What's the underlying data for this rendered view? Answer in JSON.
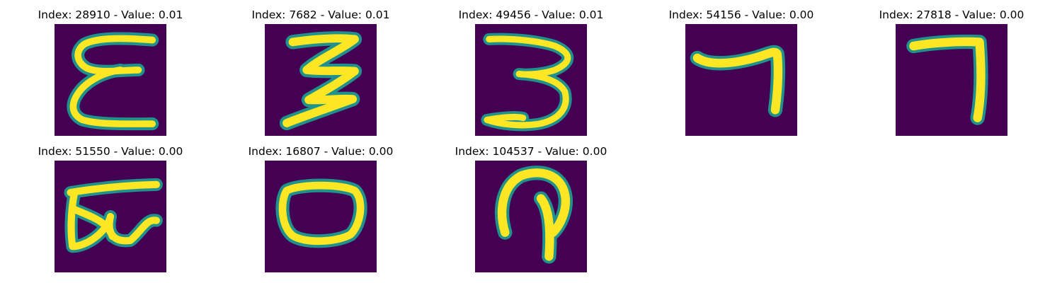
{
  "panels": [
    {
      "title": "Index: 28910 - Value: 0.01",
      "glyph": "epsilon-like-icon"
    },
    {
      "title": "Index: 7682 - Value: 0.01",
      "glyph": "three-zigzag-icon"
    },
    {
      "title": "Index: 49456 - Value: 0.01",
      "glyph": "three-icon"
    },
    {
      "title": "Index: 54156 - Value: 0.00",
      "glyph": "seven-icon"
    },
    {
      "title": "Index: 27818 - Value: 0.00",
      "glyph": "seven-icon"
    },
    {
      "title": "Index: 51550 - Value: 0.00",
      "glyph": "scribble-icon"
    },
    {
      "title": "Index: 16807 - Value: 0.00",
      "glyph": "zero-icon"
    },
    {
      "title": "Index: 104537 - Value: 0.00",
      "glyph": "hook-icon"
    }
  ],
  "colors": {
    "background": "#440154",
    "stroke_edge": "#21918c",
    "stroke_core": "#fde725"
  }
}
